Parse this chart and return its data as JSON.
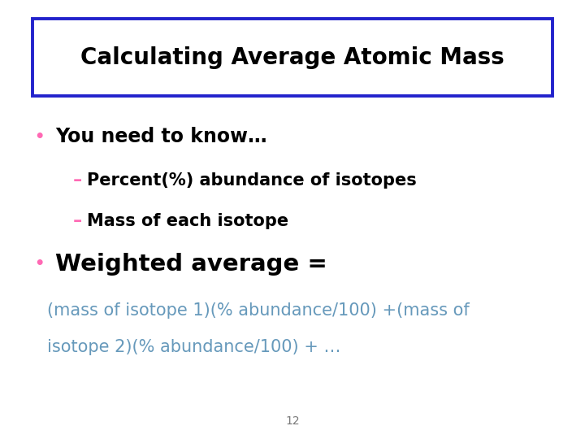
{
  "title": "Calculating Average Atomic Mass",
  "title_color": "#000000",
  "title_box_edge_color": "#2222cc",
  "background_color": "#ffffff",
  "bullet_color": "#ff69b4",
  "bullet1_text": "You need to know…",
  "sub1_dash_color": "#ff69b4",
  "sub1_text": "– Percent(%) abundance of isotopes",
  "sub2_dash_color": "#ff69b4",
  "sub2_text": "– Mass of each isotope",
  "bullet2_text": "Weighted average =",
  "formula_color": "#6699bb",
  "formula_line1": "(mass of isotope 1)(% abundance/100) +(mass of",
  "formula_line2": "isotope 2)(% abundance/100) + …",
  "page_number": "12",
  "page_number_color": "#777777"
}
